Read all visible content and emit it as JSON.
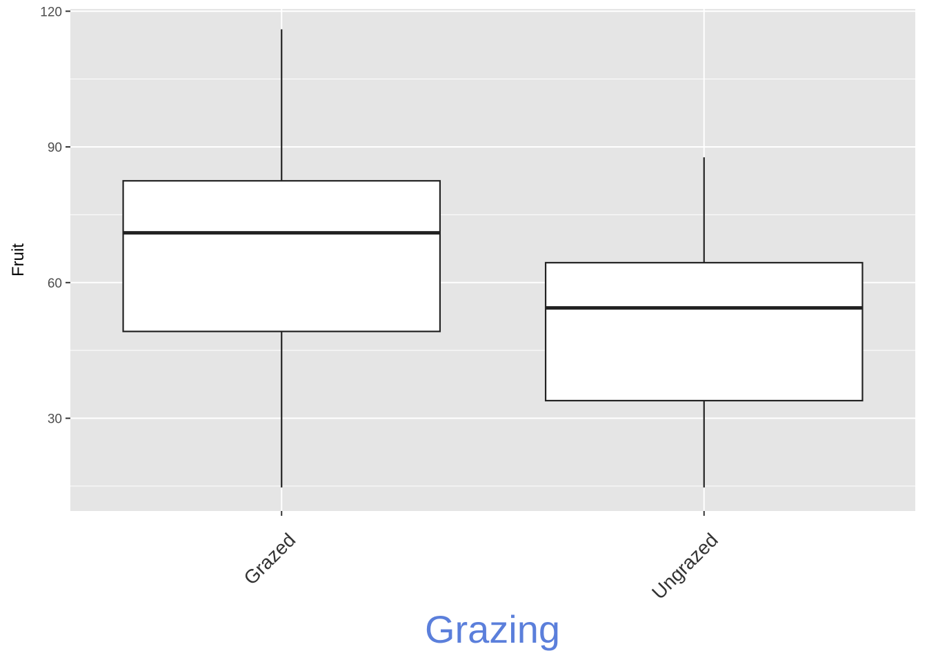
{
  "chart_data": {
    "type": "boxplot",
    "title": "",
    "xlabel": "Grazing",
    "ylabel": "Fruit",
    "categories": [
      "Grazed",
      "Ungrazed"
    ],
    "boxes": [
      {
        "category": "Grazed",
        "whisker_low": 14.7,
        "q1": 49.2,
        "median": 71.0,
        "q3": 82.5,
        "whisker_high": 116.0
      },
      {
        "category": "Ungrazed",
        "whisker_low": 14.7,
        "q1": 33.9,
        "median": 54.4,
        "q3": 64.4,
        "whisker_high": 87.7
      }
    ],
    "ylim": [
      9.5,
      120.5
    ],
    "y_ticks": [
      30,
      60,
      90,
      120
    ],
    "y_minor_ticks": [
      15,
      45,
      75,
      105
    ],
    "grid": true,
    "colors": {
      "panel": "#e5e5e5",
      "grid": "#ffffff",
      "box_fill": "#ffffff",
      "box_stroke": "#222222",
      "xlabel": "#5b7fdb",
      "tick": "#333333"
    }
  }
}
